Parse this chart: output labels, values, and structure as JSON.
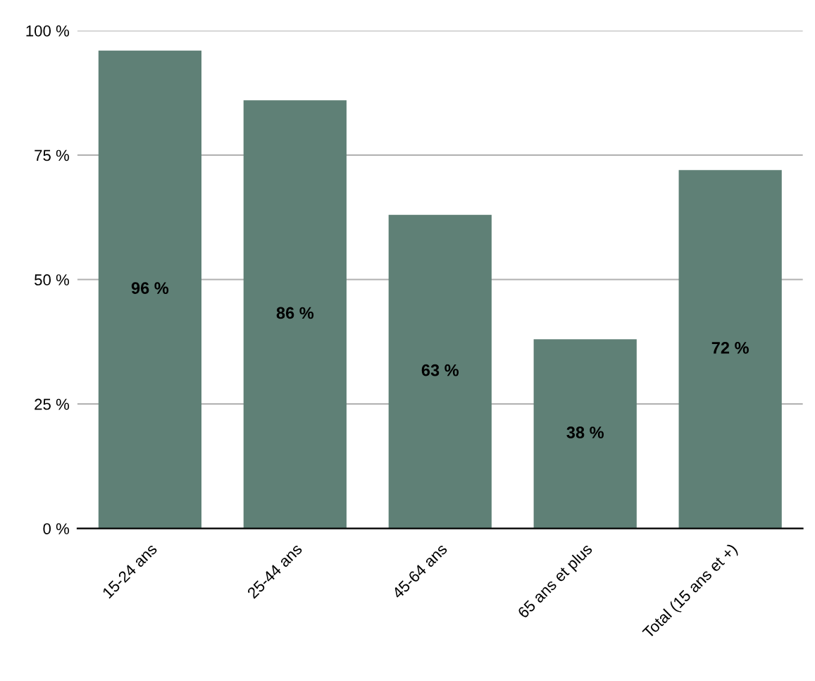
{
  "chart_data": {
    "type": "bar",
    "categories": [
      "15-24 ans",
      "25-44 ans",
      "45-64 ans",
      "65 ans et plus",
      "Total (15 ans et +)"
    ],
    "values": [
      96,
      86,
      63,
      38,
      72
    ],
    "value_labels": [
      "96 %",
      "86 %",
      "63 %",
      "38 %",
      "72 %"
    ],
    "color": "#5f8076",
    "ylim": [
      0,
      100
    ],
    "yticks": [
      {
        "value": 0,
        "label": "0 %"
      },
      {
        "value": 25,
        "label": "25 %"
      },
      {
        "value": 50,
        "label": "50 %"
      },
      {
        "value": 75,
        "label": "75 %"
      },
      {
        "value": 100,
        "label": "100 %"
      }
    ],
    "grid": "y"
  }
}
